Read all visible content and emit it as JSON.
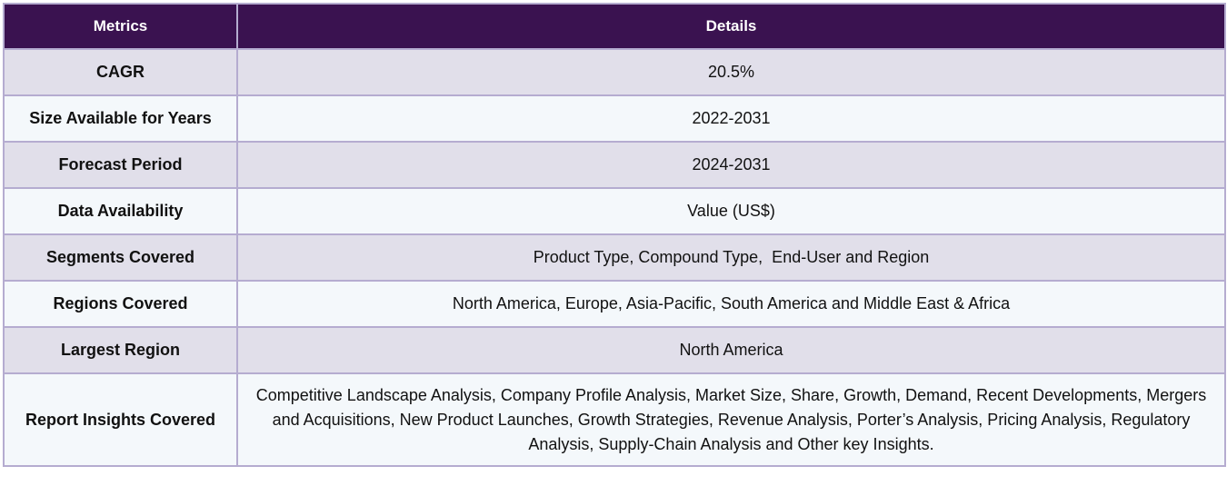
{
  "table": {
    "headers": [
      "Metrics",
      "Details"
    ],
    "rows": [
      {
        "metric": "CAGR",
        "detail": "20.5%"
      },
      {
        "metric": "Size Available for Years",
        "detail": "2022-2031"
      },
      {
        "metric": "Forecast Period",
        "detail": "2024-2031"
      },
      {
        "metric": "Data Availability",
        "detail": "Value (US$)"
      },
      {
        "metric": "Segments Covered",
        "detail": "Product Type, Compound Type,  End-User and Region"
      },
      {
        "metric": "Regions Covered",
        "detail": "North America, Europe, Asia-Pacific, South America and Middle East & Africa"
      },
      {
        "metric": "Largest Region",
        "detail": "North America"
      },
      {
        "metric": "Report Insights Covered",
        "detail": "Competitive Landscape Analysis, Company Profile Analysis, Market Size, Share, Growth, Demand, Recent Developments, Mergers and Acquisitions, New Product Launches, Growth Strategies, Revenue Analysis, Porter’s Analysis, Pricing Analysis, Regulatory Analysis, Supply-Chain Analysis and Other key Insights."
      }
    ]
  },
  "colors": {
    "header_bg": "#3a1250",
    "row_odd_bg": "#e1dfea",
    "row_even_bg": "#f4f8fb",
    "border": "#b5acd0"
  }
}
